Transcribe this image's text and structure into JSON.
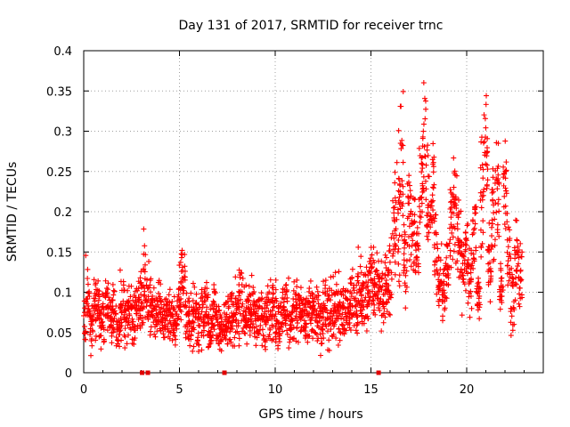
{
  "chart_data": {
    "type": "scatter",
    "title": "Day 131 of 2017, SRMTID for receiver trnc",
    "xlabel": "GPS time / hours",
    "ylabel": "SRMTID / TECUs",
    "xlim": [
      0,
      24
    ],
    "ylim": [
      0,
      0.4
    ],
    "x_ticks": [
      0,
      5,
      10,
      15,
      20
    ],
    "x_tick_labels": [
      "0",
      "5",
      "10",
      "15",
      "20"
    ],
    "y_ticks": [
      0,
      0.05,
      0.1,
      0.15,
      0.2,
      0.25,
      0.3,
      0.35,
      0.4
    ],
    "y_tick_labels": [
      "0",
      "0.05",
      "0.1",
      "0.15",
      "0.2",
      "0.25",
      "0.3",
      "0.35",
      "0.4"
    ],
    "grid": true,
    "marker": "plus",
    "color": "#ff0000",
    "data_gap_markers_x": [
      3.05,
      3.35,
      7.35,
      15.4
    ],
    "series": [
      {
        "name": "SRMTID",
        "x": [
          0.0,
          0.2,
          0.4,
          0.6,
          0.8,
          1.0,
          1.2,
          1.4,
          1.6,
          1.8,
          2.0,
          2.2,
          2.4,
          2.6,
          2.8,
          3.0,
          3.2,
          3.4,
          3.6,
          3.8,
          4.0,
          4.2,
          4.4,
          4.6,
          4.8,
          5.0,
          5.2,
          5.4,
          5.6,
          5.8,
          6.0,
          6.2,
          6.4,
          6.6,
          6.8,
          7.0,
          7.2,
          7.4,
          7.6,
          7.8,
          8.0,
          8.2,
          8.4,
          8.6,
          8.8,
          9.0,
          9.2,
          9.4,
          9.6,
          9.8,
          10.0,
          10.2,
          10.4,
          10.6,
          10.8,
          11.0,
          11.2,
          11.4,
          11.6,
          11.8,
          12.0,
          12.2,
          12.4,
          12.6,
          12.8,
          13.0,
          13.2,
          13.4,
          13.6,
          13.8,
          14.0,
          14.2,
          14.4,
          14.6,
          14.8,
          15.0,
          15.2,
          15.4,
          15.6,
          15.8,
          16.0,
          16.2,
          16.4,
          16.6,
          16.8,
          17.0,
          17.2,
          17.4,
          17.6,
          17.8,
          18.0,
          18.2,
          18.4,
          18.6,
          18.8,
          19.0,
          19.2,
          19.4,
          19.6,
          19.8,
          20.0,
          20.2,
          20.4,
          20.6,
          20.8,
          21.0,
          21.2,
          21.4,
          21.6,
          21.8,
          22.0,
          22.2,
          22.4,
          22.6,
          22.8
        ],
        "y": [
          0.07,
          0.095,
          0.06,
          0.085,
          0.075,
          0.065,
          0.09,
          0.07,
          0.08,
          0.06,
          0.085,
          0.07,
          0.075,
          0.06,
          0.09,
          0.08,
          0.11,
          0.09,
          0.085,
          0.07,
          0.08,
          0.065,
          0.075,
          0.07,
          0.06,
          0.09,
          0.12,
          0.07,
          0.065,
          0.08,
          0.06,
          0.075,
          0.07,
          0.055,
          0.08,
          0.065,
          0.05,
          0.06,
          0.065,
          0.07,
          0.075,
          0.09,
          0.07,
          0.08,
          0.085,
          0.065,
          0.075,
          0.06,
          0.07,
          0.08,
          0.065,
          0.06,
          0.07,
          0.075,
          0.06,
          0.08,
          0.085,
          0.07,
          0.065,
          0.08,
          0.07,
          0.075,
          0.065,
          0.08,
          0.07,
          0.075,
          0.085,
          0.08,
          0.07,
          0.08,
          0.09,
          0.08,
          0.1,
          0.09,
          0.1,
          0.12,
          0.105,
          0.11,
          0.1,
          0.11,
          0.12,
          0.18,
          0.2,
          0.25,
          0.14,
          0.2,
          0.17,
          0.15,
          0.24,
          0.28,
          0.21,
          0.22,
          0.15,
          0.12,
          0.1,
          0.13,
          0.18,
          0.2,
          0.16,
          0.13,
          0.15,
          0.12,
          0.17,
          0.1,
          0.22,
          0.28,
          0.13,
          0.2,
          0.23,
          0.1,
          0.24,
          0.15,
          0.09,
          0.14,
          0.12
        ],
        "spread": [
          0.035,
          0.04,
          0.03,
          0.035,
          0.03,
          0.03,
          0.035,
          0.03,
          0.03,
          0.03,
          0.035,
          0.03,
          0.03,
          0.03,
          0.035,
          0.04,
          0.05,
          0.04,
          0.035,
          0.03,
          0.03,
          0.03,
          0.03,
          0.03,
          0.03,
          0.035,
          0.05,
          0.035,
          0.03,
          0.035,
          0.03,
          0.035,
          0.035,
          0.03,
          0.03,
          0.03,
          0.025,
          0.03,
          0.03,
          0.035,
          0.035,
          0.04,
          0.035,
          0.035,
          0.035,
          0.03,
          0.035,
          0.03,
          0.035,
          0.035,
          0.035,
          0.03,
          0.035,
          0.035,
          0.03,
          0.035,
          0.035,
          0.035,
          0.03,
          0.035,
          0.035,
          0.035,
          0.035,
          0.035,
          0.035,
          0.035,
          0.035,
          0.035,
          0.035,
          0.035,
          0.04,
          0.035,
          0.04,
          0.035,
          0.04,
          0.04,
          0.035,
          0.035,
          0.035,
          0.035,
          0.04,
          0.06,
          0.07,
          0.09,
          0.05,
          0.06,
          0.05,
          0.05,
          0.07,
          0.07,
          0.06,
          0.07,
          0.05,
          0.04,
          0.035,
          0.04,
          0.05,
          0.06,
          0.05,
          0.045,
          0.05,
          0.04,
          0.05,
          0.035,
          0.07,
          0.05,
          0.04,
          0.05,
          0.06,
          0.035,
          0.06,
          0.05,
          0.04,
          0.05,
          0.045
        ]
      }
    ]
  }
}
